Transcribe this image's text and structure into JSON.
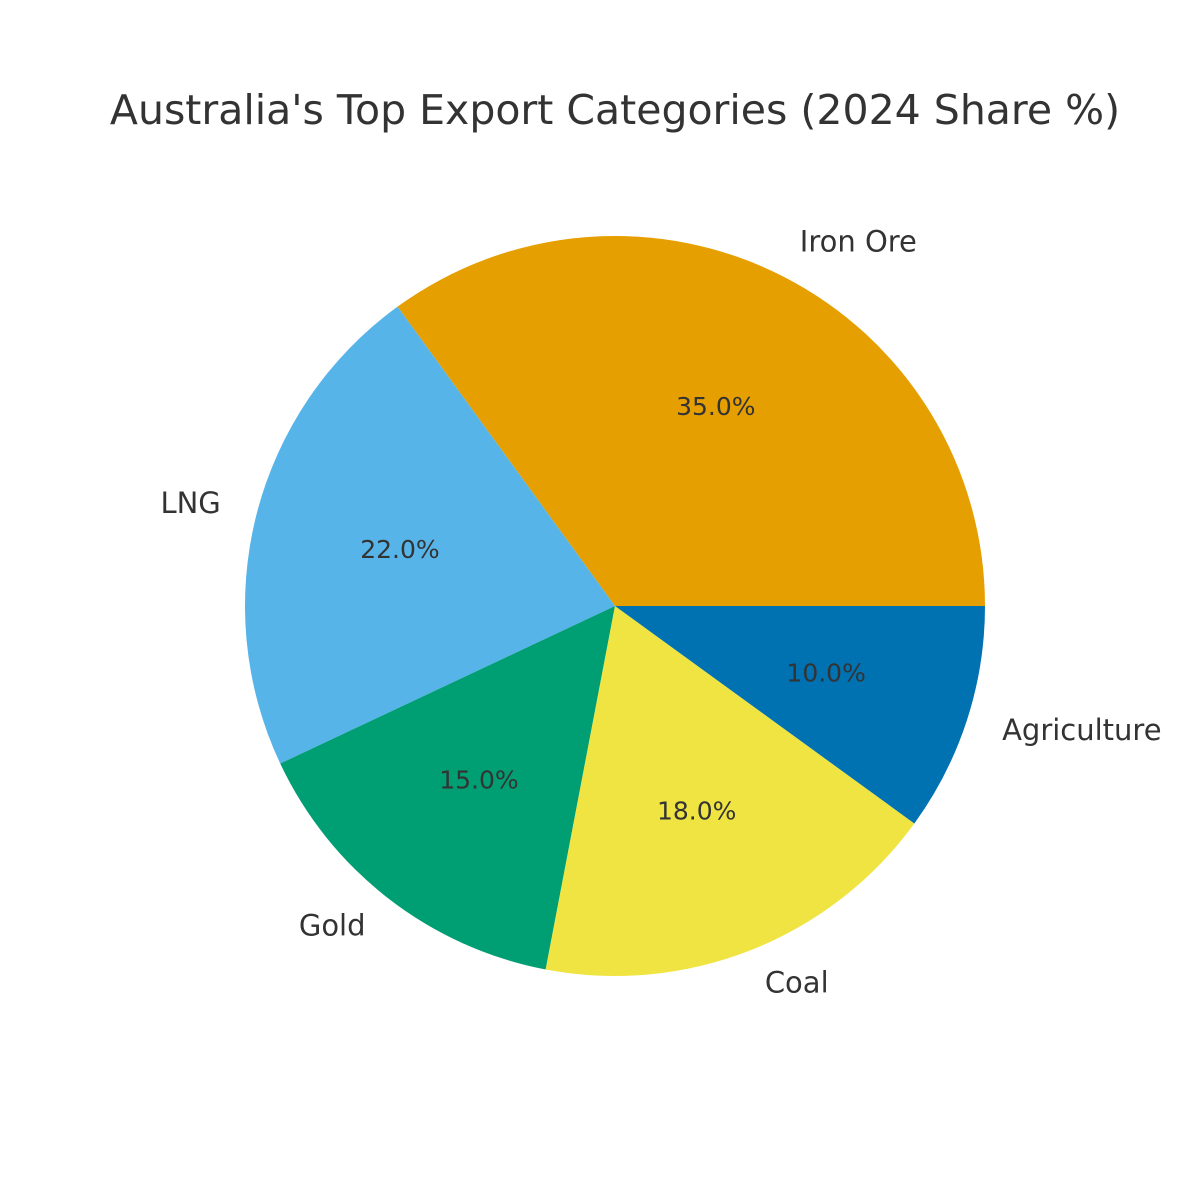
{
  "chart_data": {
    "type": "pie",
    "title": "Australia's Top Export Categories (2024 Share %)",
    "categories": [
      "Iron Ore",
      "LNG",
      "Gold",
      "Coal",
      "Agriculture"
    ],
    "values": [
      35,
      22,
      15,
      18,
      10
    ],
    "value_labels": [
      "35.0%",
      "22.0%",
      "15.0%",
      "18.0%",
      "10.0%"
    ],
    "colors": [
      "#e69f00",
      "#56b4e9",
      "#009e73",
      "#f0e442",
      "#0072b2"
    ]
  }
}
